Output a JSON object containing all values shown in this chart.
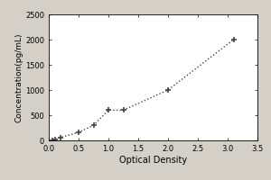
{
  "x": [
    0.062,
    0.1,
    0.2,
    0.5,
    0.75,
    1.0,
    1.25,
    2.0,
    3.1
  ],
  "y": [
    0,
    15,
    60,
    160,
    300,
    600,
    600,
    1000,
    2000
  ],
  "xlabel": "Optical Density",
  "ylabel": "Concentration(pg/mL)",
  "xlim": [
    0,
    3.5
  ],
  "ylim": [
    0,
    2500
  ],
  "xticks": [
    0,
    0.5,
    1.0,
    1.5,
    2.0,
    2.5,
    3.0,
    3.5
  ],
  "yticks": [
    0,
    500,
    1000,
    1500,
    2000,
    2500
  ],
  "line_color": "#444444",
  "marker_color": "#444444",
  "bg_color": "#d4d0c8",
  "plot_bg_color": "#ffffff",
  "marker": "+",
  "markersize": 5,
  "markeredgewidth": 1.2,
  "linewidth": 1.0,
  "xlabel_fontsize": 7,
  "ylabel_fontsize": 6.5,
  "tick_fontsize": 6
}
